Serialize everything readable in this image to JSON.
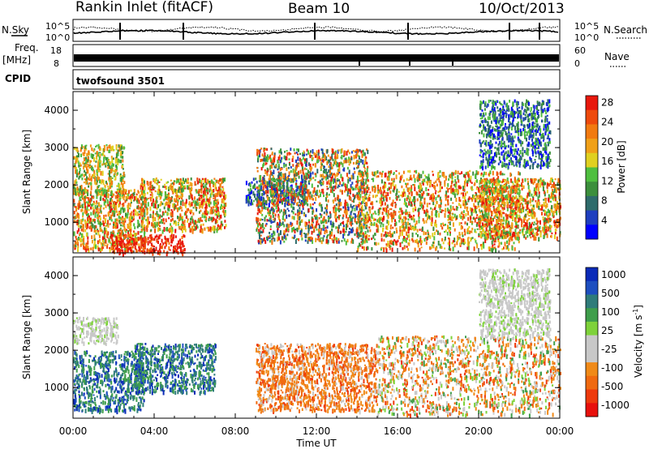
{
  "header": {
    "station": "Rankin Inlet (fitACF)",
    "beam": "Beam 10",
    "date": "10/Oct/2013"
  },
  "noise_panel": {
    "left_label": "N.Sky",
    "right_label": "N.Search",
    "left_ticks": [
      "10^5",
      "10^0"
    ],
    "right_ticks": [
      "10^5",
      "10^0"
    ]
  },
  "freq_panel": {
    "left_label_1": "Freq.",
    "left_label_2": "[MHz]",
    "right_label": "Nave",
    "left_ticks": [
      "18",
      "8"
    ],
    "right_ticks": [
      "60",
      "0"
    ]
  },
  "cpid_panel": {
    "label": "CPID",
    "value": "twofsound 3501"
  },
  "x_axis": {
    "label": "Time UT",
    "ticks": [
      "00:00",
      "04:00",
      "08:00",
      "12:00",
      "16:00",
      "20:00",
      "00:00"
    ]
  },
  "chart_data": [
    {
      "type": "heatmap",
      "quantity": "Power",
      "ylabel": "Slant Range [km]",
      "xlabel": "Time UT",
      "xlim_hours": [
        0,
        24
      ],
      "ylim": [
        180,
        4500
      ],
      "y_ticks": [
        1000,
        2000,
        3000,
        4000
      ],
      "colorbar": {
        "label": "Power [dB]",
        "ticks": [
          "4",
          "8",
          "12",
          "16",
          "20",
          "24",
          "28"
        ],
        "colors": [
          "#0000ff",
          "#1f3fbf",
          "#2e6b6b",
          "#3c8f3c",
          "#4fbf3f",
          "#e0d020",
          "#f0a018",
          "#f27a10",
          "#ee4a0c",
          "#e8180c"
        ]
      },
      "scatter_regions": [
        {
          "t": [
            0.0,
            3.5
          ],
          "r": [
            300,
            1900
          ],
          "level": "high"
        },
        {
          "t": [
            0.0,
            2.5
          ],
          "r": [
            1800,
            3100
          ],
          "level": "mid"
        },
        {
          "t": [
            1.8,
            5.5
          ],
          "r": [
            200,
            700
          ],
          "level": "very-high"
        },
        {
          "t": [
            3.3,
            7.5
          ],
          "r": [
            800,
            2200
          ],
          "level": "high"
        },
        {
          "t": [
            8.5,
            11.5
          ],
          "r": [
            1500,
            2200
          ],
          "level": "low"
        },
        {
          "t": [
            9.0,
            14.5
          ],
          "r": [
            500,
            3000
          ],
          "level": "mixed"
        },
        {
          "t": [
            14.0,
            22.0
          ],
          "r": [
            300,
            2400
          ],
          "level": "high"
        },
        {
          "t": [
            20.0,
            24.0
          ],
          "r": [
            600,
            2200
          ],
          "level": "high"
        },
        {
          "t": [
            20.0,
            23.5
          ],
          "r": [
            2500,
            4300
          ],
          "level": "low"
        }
      ]
    },
    {
      "type": "heatmap",
      "quantity": "Velocity",
      "ylabel": "Slant Range [km]",
      "xlabel": "Time UT",
      "xlim_hours": [
        0,
        24
      ],
      "ylim": [
        180,
        4500
      ],
      "y_ticks": [
        1000,
        2000,
        3000,
        4000
      ],
      "colorbar": {
        "label": "Velocity [m s-1]",
        "label_main": "Velocity [m s",
        "label_sup": "-1",
        "label_end": "]",
        "ticks": [
          "1000",
          "500",
          "100",
          "25",
          "-25",
          "-100",
          "-500",
          "-1000"
        ],
        "colors": [
          "#0a2ab8",
          "#1e4fc0",
          "#2f7c7a",
          "#3f9e4b",
          "#7ed23a",
          "#c8c8c8",
          "#c8c8c8",
          "#f08a18",
          "#f06a10",
          "#ee3a0c",
          "#e8100c"
        ]
      },
      "scatter_regions": [
        {
          "t": [
            0.0,
            3.5
          ],
          "r": [
            400,
            2000
          ],
          "level": "positive"
        },
        {
          "t": [
            0.0,
            2.2
          ],
          "r": [
            2200,
            2900
          ],
          "level": "zero"
        },
        {
          "t": [
            3.0,
            7.0
          ],
          "r": [
            900,
            2200
          ],
          "level": "positive"
        },
        {
          "t": [
            9.0,
            15.0
          ],
          "r": [
            400,
            2200
          ],
          "level": "negative"
        },
        {
          "t": [
            15.0,
            24.0
          ],
          "r": [
            300,
            2400
          ],
          "level": "mixed-negative"
        },
        {
          "t": [
            20.0,
            23.5
          ],
          "r": [
            2400,
            4200
          ],
          "level": "zero"
        }
      ]
    }
  ]
}
